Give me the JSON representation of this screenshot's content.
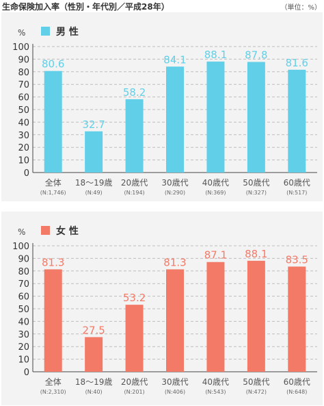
{
  "header": {
    "title": "生命保険加入率（性別・年代別／平成28年）",
    "unit": "（単位：%）"
  },
  "chart_data": [
    {
      "type": "bar",
      "legend": "男 性",
      "y_unit": "%",
      "ylim": [
        0,
        100
      ],
      "yticks": [
        0,
        10,
        20,
        30,
        40,
        50,
        60,
        70,
        80,
        90,
        100
      ],
      "grid": true,
      "color": "#62cfe8",
      "categories": [
        "全体",
        "18〜19歳",
        "20歳代",
        "30歳代",
        "40歳代",
        "50歳代",
        "60歳代"
      ],
      "sample_sizes": [
        "(N:1,746)",
        "(N:49)",
        "(N:194)",
        "(N:290)",
        "(N:369)",
        "(N:327)",
        "(N:517)"
      ],
      "values": [
        80.6,
        32.7,
        58.2,
        84.1,
        88.1,
        87.8,
        81.6
      ],
      "value_labels": [
        "80.6",
        "32.7",
        "58.2",
        "84.1",
        "88.1",
        "87.8",
        "81.6"
      ]
    },
    {
      "type": "bar",
      "legend": "女 性",
      "y_unit": "%",
      "ylim": [
        0,
        100
      ],
      "yticks": [
        0,
        10,
        20,
        30,
        40,
        50,
        60,
        70,
        80,
        90,
        100
      ],
      "grid": true,
      "color": "#f47a68",
      "categories": [
        "全体",
        "18〜19歳",
        "20歳代",
        "30歳代",
        "40歳代",
        "50歳代",
        "60歳代"
      ],
      "sample_sizes": [
        "(N:2,310)",
        "(N:40)",
        "(N:201)",
        "(N:406)",
        "(N:543)",
        "(N:472)",
        "(N:648)"
      ],
      "values": [
        81.3,
        27.5,
        53.2,
        81.3,
        87.1,
        88.1,
        83.5
      ],
      "value_labels": [
        "81.3",
        "27.5",
        "53.2",
        "81.3",
        "87.1",
        "88.1",
        "83.5"
      ]
    }
  ]
}
